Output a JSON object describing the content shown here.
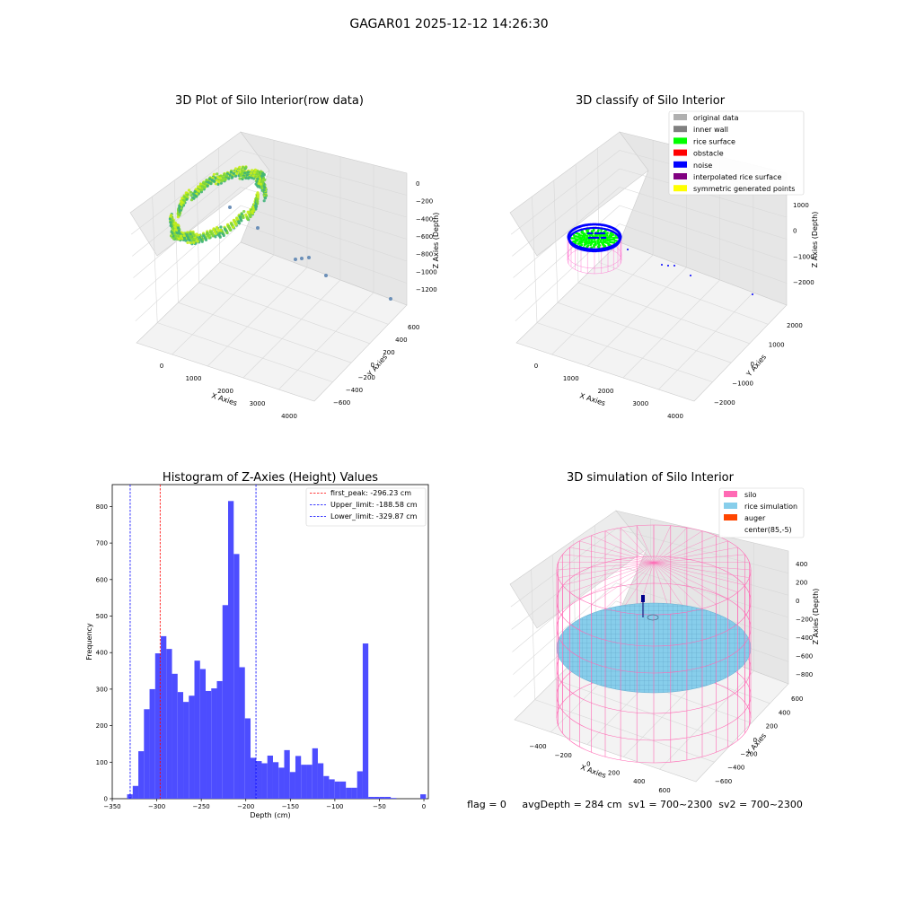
{
  "figure": {
    "suptitle": "GAGAR01 2025-12-12 14:26:30",
    "footer": "flag = 0     avgDepth = 284 cm  sv1 = 700~2300  sv2 = 700~2300"
  },
  "chart_data": [
    {
      "type": "scatter3d",
      "title": "3D Plot of Silo Interior(row data)",
      "xlabel": "X Axies",
      "ylabel": "Y Axies",
      "zlabel": "Z Axies (Depth)",
      "x_ticks": [
        "0",
        "1000",
        "2000",
        "3000",
        "4000"
      ],
      "y_ticks": [
        "−600",
        "−400",
        "−200",
        "0",
        "200",
        "400",
        "600"
      ],
      "z_ticks": [
        "0",
        "−200",
        "−400",
        "−600",
        "−800",
        "−1000",
        "−1200"
      ],
      "colors": {
        "point_light": "#c8ee18",
        "point_mid": "#7dd63a",
        "point_dark": "#3fb27a",
        "outlier": "#6b8fb8"
      }
    },
    {
      "type": "scatter3d",
      "title": "3D classify of Silo Interior",
      "xlabel": "X Axies",
      "ylabel": "Y Axies",
      "zlabel": "Z Axies (Depth)",
      "x_ticks": [
        "0",
        "1000",
        "2000",
        "3000",
        "4000"
      ],
      "y_ticks": [
        "−2000",
        "−1000",
        "0",
        "1000",
        "2000"
      ],
      "z_ticks": [
        "1000",
        "0",
        "−1000",
        "−2000"
      ],
      "legend": [
        {
          "label": "original data",
          "color": "#b0b0b0"
        },
        {
          "label": "inner wall",
          "color": "#808080"
        },
        {
          "label": "rice surface",
          "color": "#00ff00"
        },
        {
          "label": "obstacle",
          "color": "#ff0000"
        },
        {
          "label": "noise",
          "color": "#0000ff"
        },
        {
          "label": "interpolated rice surface",
          "color": "#800080"
        },
        {
          "label": "symmetric generated points",
          "color": "#ffff00"
        }
      ]
    },
    {
      "type": "bar",
      "title": "Histogram of Z-Axies (Height) Values",
      "xlabel": "Depth (cm)",
      "ylabel": "Frequency",
      "xlim": [
        -350,
        5
      ],
      "ylim": [
        0,
        860
      ],
      "bin_width": 6.3,
      "x_ticks": [
        -350,
        -300,
        -250,
        -200,
        -150,
        -100,
        -50,
        0
      ],
      "y_ticks": [
        0,
        100,
        200,
        300,
        400,
        500,
        600,
        700,
        800
      ],
      "bar_color": "#4d4dff",
      "bins": [
        {
          "x": -333.3,
          "y": 12
        },
        {
          "x": -327.0,
          "y": 35
        },
        {
          "x": -320.7,
          "y": 130
        },
        {
          "x": -314.4,
          "y": 245
        },
        {
          "x": -308.1,
          "y": 300
        },
        {
          "x": -301.8,
          "y": 398
        },
        {
          "x": -295.5,
          "y": 445
        },
        {
          "x": -289.2,
          "y": 410
        },
        {
          "x": -282.9,
          "y": 342
        },
        {
          "x": -276.6,
          "y": 292
        },
        {
          "x": -270.3,
          "y": 265
        },
        {
          "x": -264.0,
          "y": 282
        },
        {
          "x": -257.7,
          "y": 378
        },
        {
          "x": -251.4,
          "y": 355
        },
        {
          "x": -245.1,
          "y": 295
        },
        {
          "x": -238.8,
          "y": 302
        },
        {
          "x": -232.5,
          "y": 322
        },
        {
          "x": -226.2,
          "y": 530
        },
        {
          "x": -219.9,
          "y": 815
        },
        {
          "x": -213.6,
          "y": 670
        },
        {
          "x": -207.3,
          "y": 360
        },
        {
          "x": -201.0,
          "y": 220
        },
        {
          "x": -194.7,
          "y": 112
        },
        {
          "x": -188.4,
          "y": 103
        },
        {
          "x": -182.1,
          "y": 97
        },
        {
          "x": -175.8,
          "y": 118
        },
        {
          "x": -169.5,
          "y": 100
        },
        {
          "x": -163.2,
          "y": 85
        },
        {
          "x": -156.9,
          "y": 133
        },
        {
          "x": -150.6,
          "y": 73
        },
        {
          "x": -144.3,
          "y": 117
        },
        {
          "x": -138.0,
          "y": 93
        },
        {
          "x": -131.7,
          "y": 93
        },
        {
          "x": -125.4,
          "y": 138
        },
        {
          "x": -119.1,
          "y": 97
        },
        {
          "x": -112.8,
          "y": 62
        },
        {
          "x": -106.5,
          "y": 53
        },
        {
          "x": -100.2,
          "y": 47
        },
        {
          "x": -93.9,
          "y": 47
        },
        {
          "x": -87.6,
          "y": 30
        },
        {
          "x": -81.3,
          "y": 30
        },
        {
          "x": -75.0,
          "y": 75
        },
        {
          "x": -68.7,
          "y": 425
        },
        {
          "x": -62.4,
          "y": 5
        },
        {
          "x": -56.1,
          "y": 5
        },
        {
          "x": -49.8,
          "y": 5
        },
        {
          "x": -43.5,
          "y": 5
        },
        {
          "x": -37.2,
          "y": 2
        },
        {
          "x": -4.0,
          "y": 12
        }
      ],
      "vlines": [
        {
          "x": -296.23,
          "label": "first_peak: -296.23 cm",
          "color": "#ff0000"
        },
        {
          "x": -188.58,
          "label": "Upper_limit: -188.58 cm",
          "color": "#0000ff"
        },
        {
          "x": -329.87,
          "label": "Lower_limit: -329.87 cm",
          "color": "#0000ff"
        }
      ]
    },
    {
      "type": "surface3d",
      "title": "3D simulation of Silo Interior",
      "xlabel": "X Axies",
      "ylabel": "Y Axies",
      "zlabel": "Z Axies (Depth)",
      "x_ticks": [
        "−400",
        "−200",
        "0",
        "200",
        "400",
        "600"
      ],
      "y_ticks": [
        "−600",
        "−400",
        "−200",
        "0",
        "200",
        "400",
        "600"
      ],
      "z_ticks": [
        "400",
        "200",
        "0",
        "−200",
        "−400",
        "−600",
        "−800"
      ],
      "legend": [
        {
          "label": "silo",
          "color": "#ff69b4"
        },
        {
          "label": "rice simulation",
          "color": "#87ceeb"
        },
        {
          "label": "auger",
          "color": "#ff4500"
        },
        {
          "label": "center(85,-5)",
          "color": "#ffffff"
        }
      ]
    }
  ]
}
